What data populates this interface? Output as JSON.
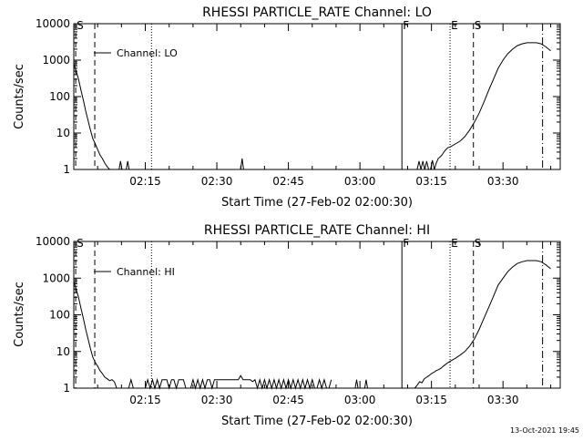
{
  "footer_timestamp": "13-Oct-2021 19:45",
  "chart_data": [
    {
      "type": "line",
      "title": "RHESSI PARTICLE_RATE Channel: LO",
      "xlabel": "Start Time (27-Feb-02 02:00:30)",
      "ylabel": "Counts/sec",
      "yscale": "log",
      "ylim": [
        1,
        10000
      ],
      "xlim_minutes": [
        0,
        102
      ],
      "xtick_labels": [
        "02:15",
        "02:30",
        "02:45",
        "03:00",
        "03:15",
        "03:30"
      ],
      "xtick_minutes": [
        15,
        30,
        45,
        60,
        75,
        90
      ],
      "ytick_labels": [
        "1",
        "10",
        "100",
        "1000",
        "10000"
      ],
      "ytick_values": [
        1,
        10,
        100,
        1000,
        10000
      ],
      "legend": {
        "label": "Channel: LO",
        "position": "top-left"
      },
      "series": [
        {
          "x": [
            0,
            0.5,
            1,
            1.5,
            2,
            2.5,
            3,
            3.5,
            4,
            4.5,
            5,
            5.5,
            6,
            6.5,
            7,
            7.5,
            8
          ],
          "y": [
            800,
            500,
            300,
            150,
            80,
            40,
            22,
            12,
            7,
            5,
            3.5,
            2.5,
            2,
            1.5,
            1.2,
            1,
            1
          ]
        },
        {
          "x": [
            9.5,
            9.8,
            10.1
          ],
          "y": [
            1,
            1.7,
            1
          ]
        },
        {
          "x": [
            11,
            11.3,
            11.6
          ],
          "y": [
            1,
            1.7,
            1
          ]
        },
        {
          "x": [
            35,
            35.3,
            35.6
          ],
          "y": [
            1,
            2,
            1
          ]
        },
        {
          "x": [
            72,
            72.4,
            72.8,
            73.2,
            73.6,
            74,
            74.4,
            74.8,
            75.2,
            75.6,
            76,
            76.4,
            76.8,
            77.2,
            77.6
          ],
          "y": [
            1,
            1.7,
            1,
            1.7,
            1,
            1.7,
            1,
            1,
            1.8,
            1,
            1.5,
            2,
            2.2,
            2.5,
            3
          ]
        },
        {
          "x": [
            77.6,
            78,
            78.5,
            79,
            80,
            81,
            82,
            83,
            84,
            85,
            86,
            87,
            88,
            89,
            90,
            91,
            92,
            93,
            94,
            95,
            96,
            97,
            98,
            99,
            100
          ],
          "y": [
            3,
            3.5,
            4,
            4.2,
            5,
            6,
            8,
            12,
            20,
            35,
            70,
            150,
            300,
            600,
            1000,
            1500,
            2000,
            2500,
            2800,
            3000,
            3000,
            3000,
            2800,
            2300,
            1800
          ]
        }
      ],
      "markers": [
        {
          "x": 0.4,
          "label": "S",
          "style": "dashed"
        },
        {
          "x": 4.4,
          "label": "",
          "style": "dashed"
        },
        {
          "x": 16.3,
          "label": "",
          "style": "dotted"
        },
        {
          "x": 68.8,
          "label": "F",
          "style": "solid"
        },
        {
          "x": 78.9,
          "label": "E",
          "style": "dotted"
        },
        {
          "x": 83.8,
          "label": "S",
          "style": "dashed"
        },
        {
          "x": 98.3,
          "label": "",
          "style": "dashdot"
        }
      ]
    },
    {
      "type": "line",
      "title": "RHESSI PARTICLE_RATE Channel: HI",
      "xlabel": "Start Time (27-Feb-02 02:00:30)",
      "ylabel": "Counts/sec",
      "yscale": "log",
      "ylim": [
        1,
        10000
      ],
      "xlim_minutes": [
        0,
        102
      ],
      "xtick_labels": [
        "02:15",
        "02:30",
        "02:45",
        "03:00",
        "03:15",
        "03:30"
      ],
      "xtick_minutes": [
        15,
        30,
        45,
        60,
        75,
        90
      ],
      "ytick_labels": [
        "1",
        "10",
        "100",
        "1000",
        "10000"
      ],
      "ytick_values": [
        1,
        10,
        100,
        1000,
        10000
      ],
      "legend": {
        "label": "Channel: HI",
        "position": "top-left"
      },
      "series": [
        {
          "x": [
            0,
            0.5,
            1,
            1.5,
            2,
            2.5,
            3,
            3.5,
            4,
            4.5,
            5,
            5.5,
            6,
            6.5,
            7,
            7.5,
            8,
            8.5
          ],
          "y": [
            800,
            500,
            300,
            150,
            80,
            40,
            22,
            12,
            7,
            5,
            4,
            3,
            2.5,
            2,
            1.8,
            1.6,
            1.7,
            1.5
          ]
        },
        {
          "x": [
            8.5,
            9,
            9.5,
            10,
            10.5,
            11,
            11.5,
            12,
            12.5,
            13,
            13.5,
            14,
            14.5,
            15,
            15.5,
            16,
            16.5,
            17,
            17.5,
            18,
            18.5,
            19,
            19.5,
            20,
            20.5,
            21,
            21.5,
            22,
            22.5,
            23,
            23.5,
            24,
            24.5,
            25,
            25.5,
            26,
            26.5,
            27,
            27.5,
            28,
            28.5,
            29,
            29.5,
            30,
            30.5,
            31,
            31.5,
            32,
            32.5,
            33,
            33.5,
            34,
            34.5,
            35,
            35.5,
            36,
            36.5,
            37,
            37.5,
            38,
            38.5,
            39,
            39.5,
            40,
            40.5,
            41,
            41.5,
            42,
            42.5,
            43,
            43.5,
            44,
            44.5,
            45,
            45.5,
            46,
            46.5,
            47,
            47.5,
            48,
            48.5,
            49,
            49.5,
            50,
            50.5,
            51,
            51.5,
            52,
            52.5,
            53,
            53.5,
            54
          ],
          "y": [
            1.5,
            1,
            1,
            1,
            1,
            1,
            1,
            1.7,
            1,
            1,
            1,
            1,
            1,
            1,
            1.7,
            1,
            1.7,
            1,
            1.7,
            1,
            1.7,
            1.7,
            1.7,
            1,
            1.7,
            1.7,
            1,
            1.7,
            1.7,
            1.7,
            1,
            1,
            1,
            1.7,
            1,
            1.7,
            1,
            1.7,
            1,
            1.7,
            1.7,
            1,
            1.7,
            1.7,
            1.7,
            1.7,
            1.7,
            1.7,
            1.7,
            1.7,
            1.7,
            1.7,
            1.7,
            2.2,
            1.7,
            1.7,
            1.7,
            1.7,
            1.5,
            1.7,
            1,
            1.7,
            1,
            1.7,
            1,
            1.7,
            1,
            1.7,
            1,
            1.7,
            1,
            1.7,
            1,
            1.7,
            1,
            1.7,
            1,
            1.7,
            1,
            1.7,
            1,
            1.7,
            1,
            1.7,
            1,
            1,
            1.7,
            1,
            1.7,
            1,
            1,
            1.7
          ]
        },
        {
          "x": [
            59,
            59.3,
            59.6
          ],
          "y": [
            1,
            1.7,
            1
          ]
        },
        {
          "x": [
            61,
            61.3,
            61.6
          ],
          "y": [
            1,
            1.7,
            1
          ]
        },
        {
          "x": [
            71.5,
            72,
            72.5,
            73,
            73.5,
            74,
            74.5,
            75,
            75.5,
            76,
            76.5,
            77,
            77.5,
            78,
            78.5,
            79,
            80,
            81,
            82,
            83,
            84,
            85,
            86,
            87,
            88,
            89,
            90,
            91,
            92,
            93,
            94,
            95,
            96,
            97,
            98,
            99,
            100
          ],
          "y": [
            1,
            1.2,
            1.5,
            1.4,
            1.8,
            2,
            2.2,
            2.5,
            2.7,
            3,
            3.2,
            3.5,
            4,
            4.5,
            5,
            5.5,
            6.5,
            8,
            10,
            14,
            22,
            40,
            80,
            160,
            320,
            650,
            1000,
            1500,
            2000,
            2500,
            2800,
            3000,
            3000,
            3000,
            2800,
            2300,
            1800
          ]
        }
      ],
      "markers": [
        {
          "x": 0.4,
          "label": "S",
          "style": "dashed"
        },
        {
          "x": 4.4,
          "label": "",
          "style": "dashed"
        },
        {
          "x": 16.3,
          "label": "",
          "style": "dotted"
        },
        {
          "x": 68.8,
          "label": "F",
          "style": "solid"
        },
        {
          "x": 78.9,
          "label": "E",
          "style": "dotted"
        },
        {
          "x": 83.8,
          "label": "S",
          "style": "dashed"
        },
        {
          "x": 98.3,
          "label": "",
          "style": "dashdot"
        }
      ]
    }
  ]
}
